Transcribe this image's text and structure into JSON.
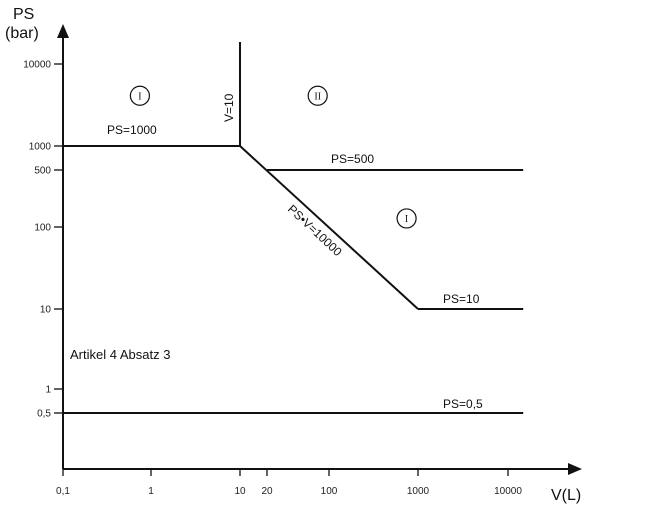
{
  "chart_data": {
    "type": "line",
    "title": "",
    "xlabel": "V(L)",
    "ylabel_line1": "PS",
    "ylabel_line2": "(bar)",
    "x_scale": "log",
    "y_scale": "log",
    "x_ticks": [
      {
        "value": 0.1,
        "label": "0,1"
      },
      {
        "value": 1,
        "label": "1"
      },
      {
        "value": 10,
        "label": "10"
      },
      {
        "value": 20,
        "label": "20"
      },
      {
        "value": 100,
        "label": "100"
      },
      {
        "value": 1000,
        "label": "1000"
      },
      {
        "value": 10000,
        "label": "10000"
      }
    ],
    "y_ticks": [
      {
        "value": 0.5,
        "label": "0,5"
      },
      {
        "value": 1,
        "label": "1"
      },
      {
        "value": 10,
        "label": "10"
      },
      {
        "value": 100,
        "label": "100"
      },
      {
        "value": 500,
        "label": "500"
      },
      {
        "value": 1000,
        "label": "1000"
      },
      {
        "value": 10000,
        "label": "10000"
      }
    ],
    "series": [
      {
        "label": "PS=1000",
        "points": [
          [
            0.1,
            1000
          ],
          [
            10,
            1000
          ]
        ]
      },
      {
        "label": "V=10",
        "points": [
          [
            10,
            1000
          ],
          [
            10,
            25000
          ]
        ]
      },
      {
        "label": "PS·V=10000",
        "points": [
          [
            10,
            1000
          ],
          [
            1000,
            10
          ]
        ]
      },
      {
        "label": "PS=500",
        "points": [
          [
            20,
            500
          ],
          [
            15000,
            500
          ]
        ]
      },
      {
        "label": "PS=10",
        "points": [
          [
            1000,
            10
          ],
          [
            15000,
            10
          ]
        ]
      },
      {
        "label": "PS=0,5",
        "points": [
          [
            0.1,
            0.5
          ],
          [
            15000,
            0.5
          ]
        ]
      }
    ],
    "labels": {
      "ps1000": "PS=1000",
      "v10": "V=10",
      "psv": "PS•V=10000",
      "ps500": "PS=500",
      "ps10": "PS=10",
      "ps05": "PS=0,5",
      "note": "Artikel 4 Absatz 3"
    },
    "regions": [
      {
        "label": "I",
        "at": [
          1,
          4200
        ]
      },
      {
        "label": "II",
        "at": [
          100,
          4200
        ]
      },
      {
        "label": "I",
        "at": [
          1000,
          130
        ]
      }
    ]
  }
}
